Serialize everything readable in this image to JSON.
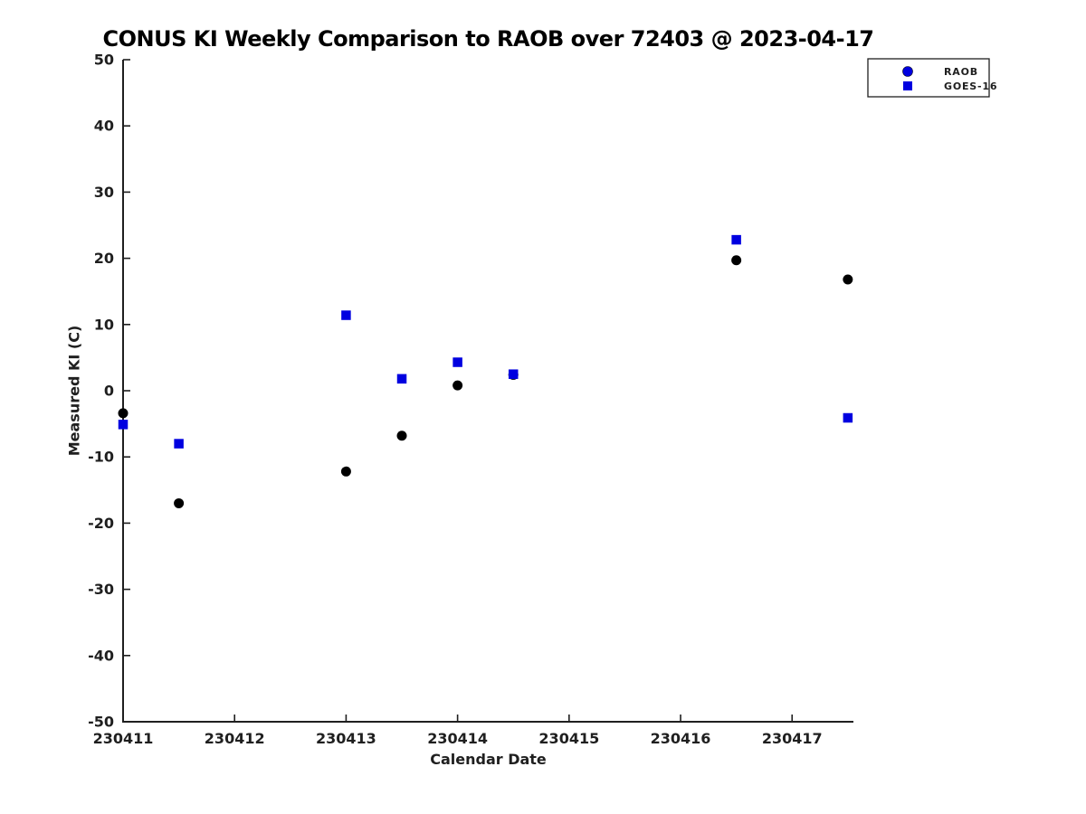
{
  "chart_data": {
    "type": "scatter",
    "title": "CONUS KI Weekly Comparison to RAOB over 72403 @ 2023-04-17",
    "xlabel": "Calendar Date",
    "ylabel": "Measured KI (C)",
    "xlim": [
      230411,
      230417.55
    ],
    "ylim": [
      -50,
      50
    ],
    "x_ticks": [
      230411,
      230412,
      230413,
      230414,
      230415,
      230416,
      230417
    ],
    "y_ticks": [
      50,
      40,
      30,
      20,
      10,
      0,
      -10,
      -20,
      -30,
      -40,
      -50
    ],
    "grid": false,
    "axis_color": "#1f1f1f",
    "text_color": "#1f1f1f",
    "legend": {
      "position": "top-right",
      "background": "#ffffff",
      "border_color": "#1f1f1f"
    },
    "series": [
      {
        "name": "RAOB",
        "marker": "circle",
        "marker_color": "#000000",
        "legend_marker_color": "#0000e0",
        "points": [
          [
            230411.0,
            -3.4
          ],
          [
            230411.5,
            -17.0
          ],
          [
            230413.0,
            -12.2
          ],
          [
            230413.5,
            -6.8
          ],
          [
            230414.0,
            0.8
          ],
          [
            230414.5,
            2.4
          ],
          [
            230416.5,
            19.7
          ],
          [
            230417.5,
            16.8
          ]
        ]
      },
      {
        "name": "GOES-16",
        "marker": "square",
        "marker_color": "#0000e0",
        "legend_marker_color": "#0000e0",
        "points": [
          [
            230411.0,
            -5.1
          ],
          [
            230411.5,
            -8.0
          ],
          [
            230413.0,
            11.4
          ],
          [
            230413.5,
            1.8
          ],
          [
            230414.0,
            4.3
          ],
          [
            230414.5,
            2.5
          ],
          [
            230416.5,
            22.8
          ],
          [
            230417.5,
            -4.1
          ]
        ]
      }
    ]
  }
}
